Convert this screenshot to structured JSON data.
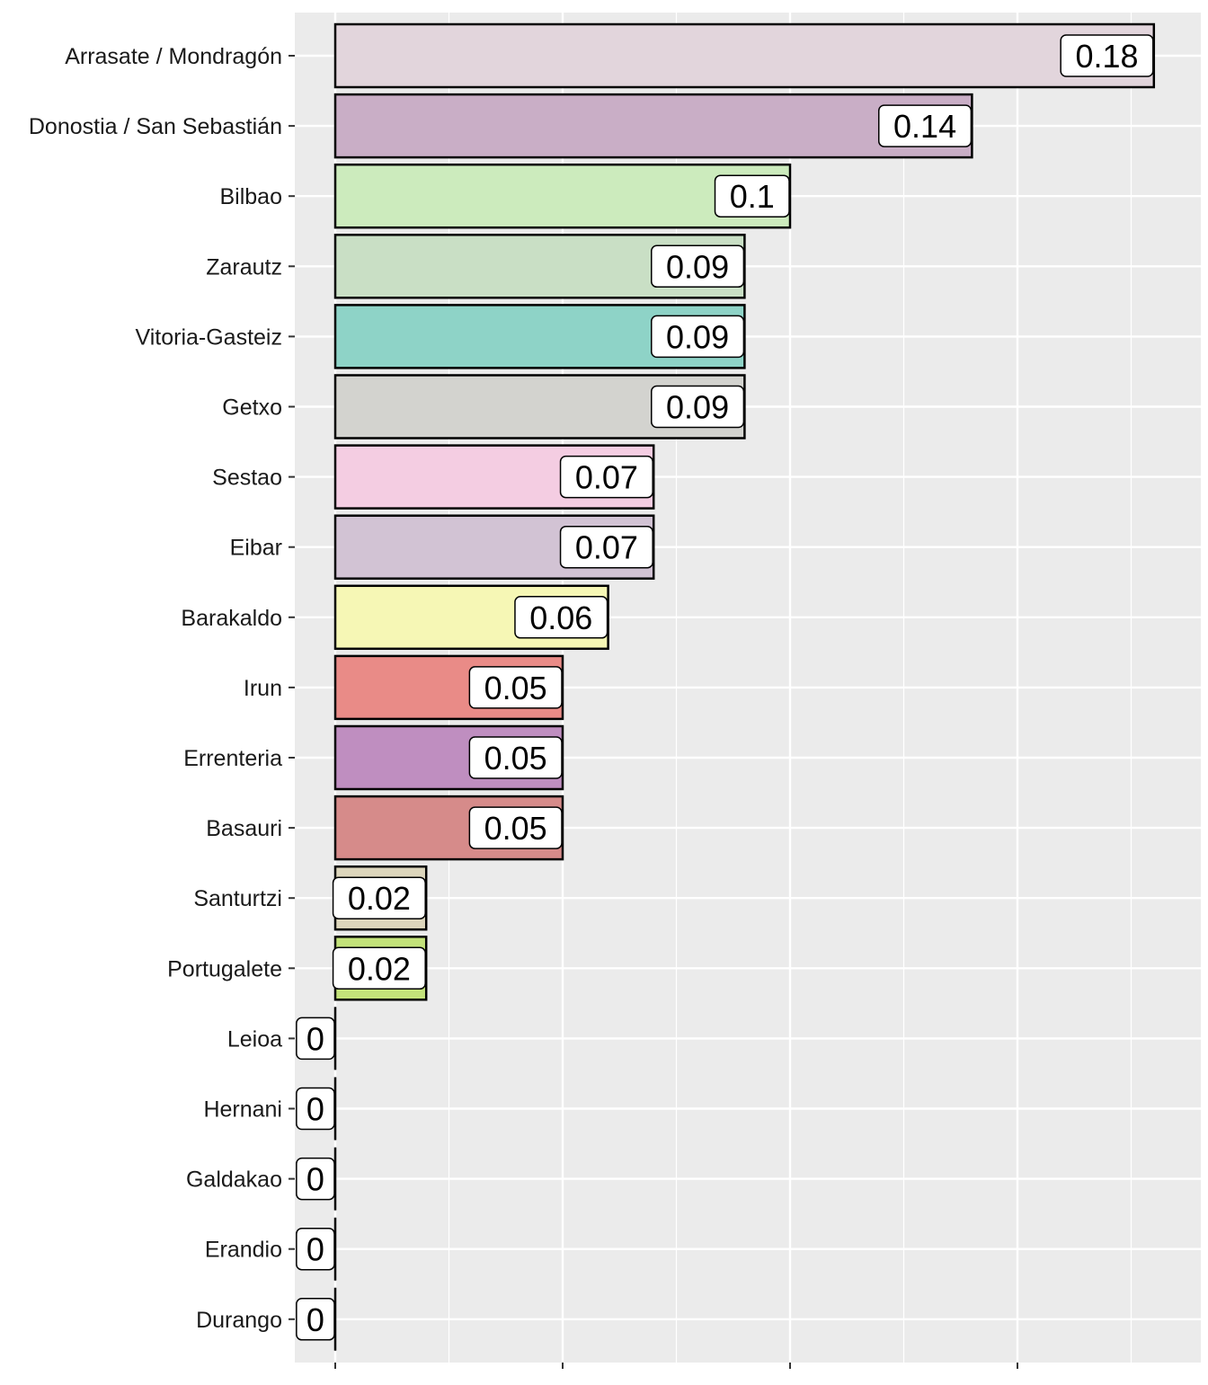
{
  "chart_data": {
    "type": "bar",
    "orientation": "horizontal",
    "title": "",
    "xlabel": "",
    "ylabel": "",
    "xlim": [
      0,
      0.18
    ],
    "grid": true,
    "legend": "none",
    "categories": [
      "Arrasate / Mondragón",
      "Donostia / San Sebastián",
      "Bilbao",
      "Zarautz",
      "Vitoria-Gasteiz",
      "Getxo",
      "Sestao",
      "Eibar",
      "Barakaldo",
      "Irun",
      "Errenteria",
      "Basauri",
      "Santurtzi",
      "Portugalete",
      "Leioa",
      "Hernani",
      "Galdakao",
      "Erandio",
      "Durango"
    ],
    "values": [
      0.18,
      0.14,
      0.1,
      0.09,
      0.09,
      0.09,
      0.07,
      0.07,
      0.06,
      0.05,
      0.05,
      0.05,
      0.02,
      0.02,
      0,
      0,
      0,
      0,
      0
    ],
    "labels": [
      "0.18",
      "0.14",
      "0.1",
      "0.09",
      "0.09",
      "0.09",
      "0.07",
      "0.07",
      "0.06",
      "0.05",
      "0.05",
      "0.05",
      "0.02",
      "0.02",
      "0",
      "0",
      "0",
      "0",
      "0"
    ],
    "colors": [
      "#E2D5DC",
      "#C9AEC6",
      "#CCEBBD",
      "#C9DFC5",
      "#8ED3C7",
      "#D3D3CF",
      "#F4CDE2",
      "#D2C3D4",
      "#F6F7B5",
      "#E98B87",
      "#BF8EC0",
      "#D68B8A",
      "#DDD6BC",
      "#C3E27A",
      "#BFC5C5",
      "#D9D9D9",
      "#CCCCCC",
      "#BBBBBB",
      "#AAAAAA"
    ]
  }
}
